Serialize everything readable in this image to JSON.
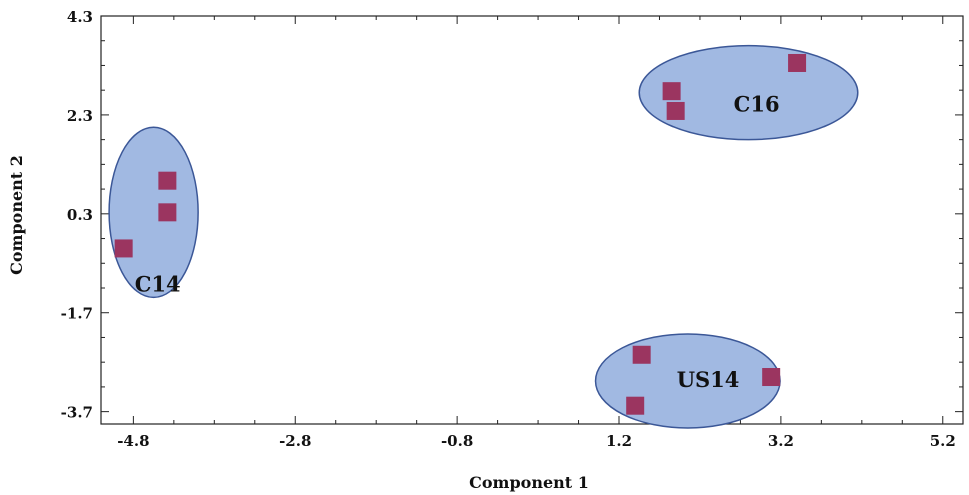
{
  "chart_data": {
    "type": "scatter",
    "title": "",
    "xlabel": "Component 1",
    "ylabel": "Component 2",
    "xlim": [
      -5.2,
      5.45
    ],
    "ylim": [
      -3.95,
      4.3
    ],
    "x_ticks": [
      -4.8,
      -2.8,
      -0.8,
      1.2,
      3.2,
      5.2
    ],
    "y_ticks": [
      4.3,
      2.3,
      0.3,
      -1.7,
      -3.7
    ],
    "x_tick_labels": [
      "-4.8",
      "-2.8",
      "-0.8",
      "1.2",
      "3.2",
      "5.2"
    ],
    "y_tick_labels": [
      "4.3",
      "2.3",
      "0.3",
      "-1.7",
      "-3.7"
    ],
    "marker_color": "#9b3560",
    "ellipse_fill": "#a1b9e2",
    "ellipse_stroke": "#3b5797",
    "series": [
      {
        "name": "C14",
        "points": [
          [
            -4.92,
            -0.4
          ],
          [
            -4.38,
            0.97
          ],
          [
            -4.38,
            0.33
          ]
        ],
        "ellipse": {
          "cx": -4.55,
          "cy": 0.33,
          "rx": 0.55,
          "ry": 1.72
        }
      },
      {
        "name": "C16",
        "points": [
          [
            1.85,
            2.78
          ],
          [
            1.9,
            2.38
          ],
          [
            3.4,
            3.35
          ]
        ],
        "ellipse": {
          "cx": 2.8,
          "cy": 2.75,
          "rx": 1.35,
          "ry": 0.95
        }
      },
      {
        "name": "US14",
        "points": [
          [
            1.48,
            -2.55
          ],
          [
            1.4,
            -3.58
          ],
          [
            3.08,
            -3.0
          ]
        ],
        "ellipse": {
          "cx": 2.05,
          "cy": -3.08,
          "rx": 1.14,
          "ry": 0.95
        }
      }
    ]
  }
}
